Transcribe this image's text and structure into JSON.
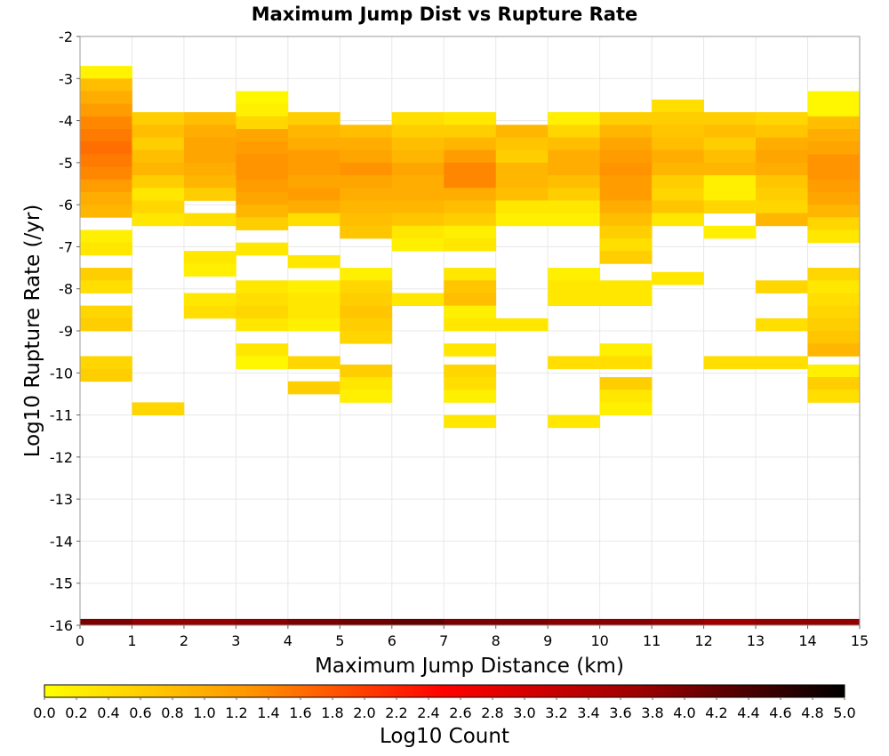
{
  "chart_data": {
    "type": "heatmap",
    "title": "Maximum Jump Dist vs Rupture Rate",
    "xlabel": "Maximum Jump Distance (km)",
    "ylabel": "Log10 Rupture Rate (/yr)",
    "xlim": [
      0,
      15
    ],
    "ylim": [
      -16,
      -2
    ],
    "x_ticks": [
      "0",
      "1",
      "2",
      "3",
      "4",
      "5",
      "6",
      "7",
      "8",
      "9",
      "10",
      "11",
      "12",
      "13",
      "14",
      "15"
    ],
    "y_ticks": [
      "-2",
      "-3",
      "-4",
      "-5",
      "-6",
      "-7",
      "-8",
      "-9",
      "-10",
      "-11",
      "-12",
      "-13",
      "-14",
      "-15",
      "-16"
    ],
    "x_bin_width": 1,
    "y_bin_height": 0.3,
    "grid": true,
    "colorbar": {
      "label": "Log10 Count",
      "min": 0.0,
      "max": 5.0,
      "tick_labels": [
        "0.0",
        "0.2",
        "0.4",
        "0.6",
        "0.8",
        "1.0",
        "1.2",
        "1.4",
        "1.6",
        "1.8",
        "2.0",
        "2.2",
        "2.4",
        "2.6",
        "2.8",
        "3.0",
        "3.2",
        "3.4",
        "3.6",
        "3.8",
        "4.0",
        "4.2",
        "4.4",
        "4.6",
        "4.8",
        "5.0"
      ],
      "colors": [
        "#ffff00",
        "#ff9900",
        "#ff0000",
        "#9a0000",
        "#000000"
      ]
    },
    "summary_row": {
      "y": -16,
      "values": [
        4.0,
        3.8,
        3.8,
        3.9,
        4.0,
        4.1,
        4.2,
        4.0,
        4.0,
        3.9,
        3.9,
        3.8,
        3.7,
        3.8,
        3.8
      ]
    },
    "columns": [
      {
        "x": 0,
        "cells": [
          [
            -2.85,
            0.15
          ],
          [
            -3.15,
            0.8
          ],
          [
            -3.45,
            1.0
          ],
          [
            -3.75,
            1.2
          ],
          [
            -4.05,
            1.4
          ],
          [
            -4.35,
            1.5
          ],
          [
            -4.65,
            1.6
          ],
          [
            -4.95,
            1.5
          ],
          [
            -5.25,
            1.4
          ],
          [
            -5.55,
            1.2
          ],
          [
            -5.85,
            1.0
          ],
          [
            -6.15,
            0.9
          ],
          [
            -6.75,
            0.2
          ],
          [
            -7.05,
            0.3
          ],
          [
            -7.65,
            0.6
          ],
          [
            -7.95,
            0.4
          ],
          [
            -8.55,
            0.5
          ],
          [
            -8.85,
            0.6
          ],
          [
            -9.75,
            0.5
          ],
          [
            -10.05,
            0.6
          ]
        ]
      },
      {
        "x": 1,
        "cells": [
          [
            -3.95,
            0.6
          ],
          [
            -4.25,
            0.8
          ],
          [
            -4.55,
            0.6
          ],
          [
            -4.85,
            0.8
          ],
          [
            -5.15,
            0.9
          ],
          [
            -5.45,
            0.6
          ],
          [
            -5.75,
            0.3
          ],
          [
            -6.05,
            0.5
          ],
          [
            -6.35,
            0.3
          ],
          [
            -10.85,
            0.5
          ]
        ]
      },
      {
        "x": 2,
        "cells": [
          [
            -3.95,
            0.8
          ],
          [
            -4.25,
            1.0
          ],
          [
            -4.55,
            1.1
          ],
          [
            -4.85,
            1.1
          ],
          [
            -5.15,
            1.0
          ],
          [
            -5.45,
            0.9
          ],
          [
            -5.75,
            0.6
          ],
          [
            -6.35,
            0.4
          ],
          [
            -7.25,
            0.3
          ],
          [
            -7.55,
            0.2
          ],
          [
            -8.25,
            0.3
          ],
          [
            -8.55,
            0.4
          ]
        ]
      },
      {
        "x": 3,
        "cells": [
          [
            -3.45,
            0.1
          ],
          [
            -3.75,
            0.2
          ],
          [
            -4.05,
            0.5
          ],
          [
            -4.35,
            1.1
          ],
          [
            -4.65,
            1.2
          ],
          [
            -4.95,
            1.3
          ],
          [
            -5.25,
            1.3
          ],
          [
            -5.55,
            1.2
          ],
          [
            -5.85,
            1.1
          ],
          [
            -6.15,
            0.9
          ],
          [
            -6.45,
            0.6
          ],
          [
            -7.05,
            0.3
          ],
          [
            -7.95,
            0.3
          ],
          [
            -8.25,
            0.4
          ],
          [
            -8.55,
            0.5
          ],
          [
            -8.85,
            0.3
          ],
          [
            -9.45,
            0.3
          ],
          [
            -9.75,
            0.1
          ]
        ]
      },
      {
        "x": 4,
        "cells": [
          [
            -3.95,
            0.6
          ],
          [
            -4.25,
            0.9
          ],
          [
            -4.55,
            1.0
          ],
          [
            -4.85,
            1.2
          ],
          [
            -5.15,
            1.2
          ],
          [
            -5.45,
            1.1
          ],
          [
            -5.75,
            1.2
          ],
          [
            -6.05,
            1.0
          ],
          [
            -6.35,
            0.4
          ],
          [
            -7.35,
            0.3
          ],
          [
            -7.95,
            0.2
          ],
          [
            -8.25,
            0.3
          ],
          [
            -8.55,
            0.3
          ],
          [
            -8.85,
            0.2
          ],
          [
            -9.75,
            0.5
          ],
          [
            -10.35,
            0.6
          ]
        ]
      },
      {
        "x": 5,
        "cells": [
          [
            -4.25,
            0.8
          ],
          [
            -4.55,
            1.0
          ],
          [
            -4.85,
            1.1
          ],
          [
            -5.15,
            1.3
          ],
          [
            -5.45,
            1.1
          ],
          [
            -5.75,
            1.0
          ],
          [
            -6.05,
            0.9
          ],
          [
            -6.35,
            0.8
          ],
          [
            -6.65,
            0.7
          ],
          [
            -7.65,
            0.2
          ],
          [
            -7.95,
            0.5
          ],
          [
            -8.25,
            0.6
          ],
          [
            -8.55,
            0.7
          ],
          [
            -8.85,
            0.6
          ],
          [
            -9.15,
            0.5
          ],
          [
            -9.95,
            0.6
          ],
          [
            -10.25,
            0.3
          ],
          [
            -10.55,
            0.2
          ]
        ]
      },
      {
        "x": 6,
        "cells": [
          [
            -3.95,
            0.4
          ],
          [
            -4.25,
            0.6
          ],
          [
            -4.55,
            0.8
          ],
          [
            -4.85,
            0.9
          ],
          [
            -5.15,
            1.1
          ],
          [
            -5.45,
            1.0
          ],
          [
            -5.75,
            1.0
          ],
          [
            -6.05,
            0.9
          ],
          [
            -6.35,
            0.7
          ],
          [
            -6.65,
            0.3
          ],
          [
            -6.95,
            0.2
          ],
          [
            -8.25,
            0.3
          ]
        ]
      },
      {
        "x": 7,
        "cells": [
          [
            -3.95,
            0.3
          ],
          [
            -4.25,
            0.6
          ],
          [
            -4.55,
            0.9
          ],
          [
            -4.85,
            1.2
          ],
          [
            -5.15,
            1.4
          ],
          [
            -5.45,
            1.4
          ],
          [
            -5.75,
            1.0
          ],
          [
            -6.05,
            0.8
          ],
          [
            -6.35,
            0.6
          ],
          [
            -6.65,
            0.2
          ],
          [
            -6.95,
            0.3
          ],
          [
            -7.65,
            0.3
          ],
          [
            -7.95,
            0.7
          ],
          [
            -8.25,
            0.8
          ],
          [
            -8.55,
            0.2
          ],
          [
            -8.85,
            0.3
          ],
          [
            -9.45,
            0.3
          ],
          [
            -9.95,
            0.5
          ],
          [
            -10.25,
            0.4
          ],
          [
            -10.55,
            0.2
          ],
          [
            -11.15,
            0.3
          ]
        ]
      },
      {
        "x": 8,
        "cells": [
          [
            -4.25,
            0.9
          ],
          [
            -4.55,
            0.7
          ],
          [
            -4.85,
            0.6
          ],
          [
            -5.15,
            0.9
          ],
          [
            -5.45,
            0.9
          ],
          [
            -5.75,
            0.8
          ],
          [
            -6.05,
            0.3
          ],
          [
            -6.35,
            0.2
          ],
          [
            -8.85,
            0.3
          ]
        ]
      },
      {
        "x": 9,
        "cells": [
          [
            -3.95,
            0.2
          ],
          [
            -4.25,
            0.5
          ],
          [
            -4.55,
            0.8
          ],
          [
            -4.85,
            1.0
          ],
          [
            -5.15,
            1.0
          ],
          [
            -5.45,
            0.8
          ],
          [
            -5.75,
            0.6
          ],
          [
            -6.05,
            0.3
          ],
          [
            -6.35,
            0.2
          ],
          [
            -7.65,
            0.2
          ],
          [
            -7.95,
            0.3
          ],
          [
            -8.25,
            0.3
          ],
          [
            -9.75,
            0.4
          ],
          [
            -11.15,
            0.3
          ]
        ]
      },
      {
        "x": 10,
        "cells": [
          [
            -3.95,
            0.6
          ],
          [
            -4.25,
            0.9
          ],
          [
            -4.55,
            1.1
          ],
          [
            -4.85,
            1.2
          ],
          [
            -5.15,
            1.3
          ],
          [
            -5.45,
            1.2
          ],
          [
            -5.75,
            1.2
          ],
          [
            -6.05,
            1.0
          ],
          [
            -6.35,
            0.8
          ],
          [
            -6.65,
            0.6
          ],
          [
            -6.95,
            0.4
          ],
          [
            -7.25,
            0.6
          ],
          [
            -7.95,
            0.3
          ],
          [
            -8.25,
            0.3
          ],
          [
            -9.45,
            0.2
          ],
          [
            -9.75,
            0.4
          ],
          [
            -10.25,
            0.6
          ],
          [
            -10.55,
            0.3
          ],
          [
            -10.85,
            0.2
          ]
        ]
      },
      {
        "x": 11,
        "cells": [
          [
            -3.65,
            0.4
          ],
          [
            -3.95,
            0.6
          ],
          [
            -4.25,
            0.7
          ],
          [
            -4.55,
            0.8
          ],
          [
            -4.85,
            1.0
          ],
          [
            -5.15,
            0.9
          ],
          [
            -5.45,
            0.6
          ],
          [
            -5.75,
            0.5
          ],
          [
            -6.05,
            0.7
          ],
          [
            -6.35,
            0.3
          ],
          [
            -7.75,
            0.3
          ]
        ]
      },
      {
        "x": 12,
        "cells": [
          [
            -3.95,
            0.6
          ],
          [
            -4.25,
            0.8
          ],
          [
            -4.55,
            0.6
          ],
          [
            -4.85,
            0.8
          ],
          [
            -5.15,
            0.9
          ],
          [
            -5.45,
            0.2
          ],
          [
            -5.75,
            0.2
          ],
          [
            -6.05,
            0.5
          ],
          [
            -6.65,
            0.2
          ],
          [
            -9.75,
            0.4
          ]
        ]
      },
      {
        "x": 13,
        "cells": [
          [
            -3.95,
            0.5
          ],
          [
            -4.25,
            0.7
          ],
          [
            -4.55,
            1.0
          ],
          [
            -4.85,
            1.1
          ],
          [
            -5.15,
            1.0
          ],
          [
            -5.45,
            0.7
          ],
          [
            -5.75,
            0.6
          ],
          [
            -6.05,
            0.5
          ],
          [
            -6.35,
            0.9
          ],
          [
            -7.95,
            0.5
          ],
          [
            -8.85,
            0.4
          ],
          [
            -9.75,
            0.4
          ]
        ]
      },
      {
        "x": 14,
        "cells": [
          [
            -3.45,
            0.1
          ],
          [
            -3.75,
            0.1
          ],
          [
            -4.05,
            0.8
          ],
          [
            -4.35,
            1.0
          ],
          [
            -4.65,
            1.1
          ],
          [
            -4.95,
            1.3
          ],
          [
            -5.25,
            1.3
          ],
          [
            -5.55,
            1.2
          ],
          [
            -5.85,
            1.1
          ],
          [
            -6.15,
            0.9
          ],
          [
            -6.45,
            0.5
          ],
          [
            -6.75,
            0.3
          ],
          [
            -7.65,
            0.5
          ],
          [
            -7.95,
            0.3
          ],
          [
            -8.25,
            0.4
          ],
          [
            -8.55,
            0.5
          ],
          [
            -8.85,
            0.6
          ],
          [
            -9.15,
            0.7
          ],
          [
            -9.45,
            0.9
          ],
          [
            -9.95,
            0.2
          ],
          [
            -10.25,
            0.6
          ],
          [
            -10.55,
            0.4
          ]
        ]
      }
    ]
  }
}
